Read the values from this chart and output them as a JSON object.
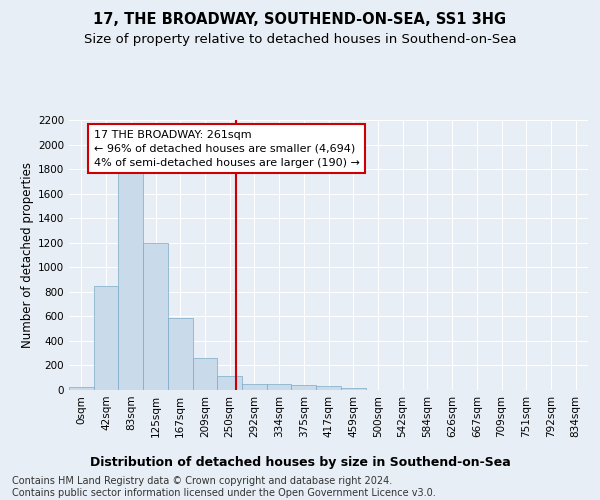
{
  "title1": "17, THE BROADWAY, SOUTHEND-ON-SEA, SS1 3HG",
  "title2": "Size of property relative to detached houses in Southend-on-Sea",
  "xlabel": "Distribution of detached houses by size in Southend-on-Sea",
  "ylabel": "Number of detached properties",
  "bin_labels": [
    "0sqm",
    "42sqm",
    "83sqm",
    "125sqm",
    "167sqm",
    "209sqm",
    "250sqm",
    "292sqm",
    "334sqm",
    "375sqm",
    "417sqm",
    "459sqm",
    "500sqm",
    "542sqm",
    "584sqm",
    "626sqm",
    "667sqm",
    "709sqm",
    "751sqm",
    "792sqm",
    "834sqm"
  ],
  "bar_heights": [
    25,
    845,
    1790,
    1200,
    585,
    260,
    115,
    50,
    45,
    38,
    30,
    15,
    0,
    0,
    0,
    0,
    0,
    0,
    0,
    0,
    0
  ],
  "bar_color": "#c9daea",
  "bar_edge_color": "#7aaac8",
  "bar_width": 1.0,
  "vline_x": 6.27,
  "vline_color": "#cc0000",
  "annotation_text": "17 THE BROADWAY: 261sqm\n← 96% of detached houses are smaller (4,694)\n4% of semi-detached houses are larger (190) →",
  "annotation_box_color": "#ffffff",
  "annotation_box_edge": "#cc0000",
  "ylim": [
    0,
    2200
  ],
  "yticks": [
    0,
    200,
    400,
    600,
    800,
    1000,
    1200,
    1400,
    1600,
    1800,
    2000,
    2200
  ],
  "footer1": "Contains HM Land Registry data © Crown copyright and database right 2024.",
  "footer2": "Contains public sector information licensed under the Open Government Licence v3.0.",
  "background_color": "#e8eef5",
  "plot_bg_color": "#e8eef5",
  "grid_color": "#ffffff",
  "title1_fontsize": 10.5,
  "title2_fontsize": 9.5,
  "xlabel_fontsize": 9,
  "ylabel_fontsize": 8.5,
  "tick_fontsize": 7.5,
  "annotation_fontsize": 8,
  "footer_fontsize": 7
}
